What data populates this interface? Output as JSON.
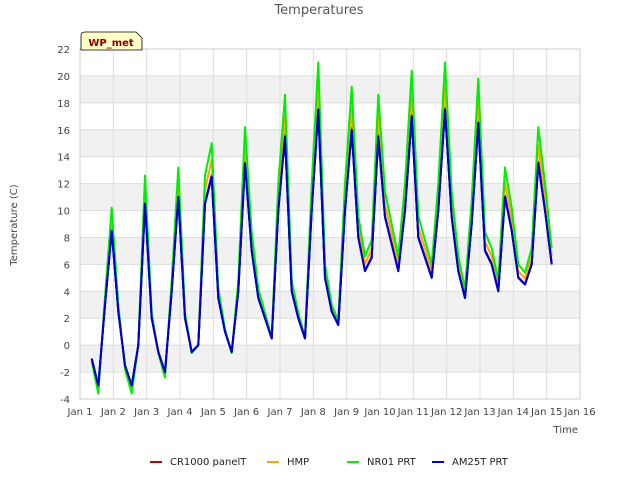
{
  "chart_data": {
    "type": "line",
    "title": "Temperatures",
    "xlabel": "Time",
    "ylabel": "Temperature (C)",
    "badge": "WP_met",
    "xlim": [
      1,
      16
    ],
    "ylim": [
      -4,
      22
    ],
    "yticks": [
      -4,
      -2,
      0,
      2,
      4,
      6,
      8,
      10,
      12,
      14,
      16,
      18,
      20,
      22
    ],
    "xticks": [
      {
        "v": 1,
        "label": "Jan 1"
      },
      {
        "v": 2,
        "label": "Jan 2"
      },
      {
        "v": 3,
        "label": "Jan 3"
      },
      {
        "v": 4,
        "label": "Jan 4"
      },
      {
        "v": 5,
        "label": "Jan 5"
      },
      {
        "v": 6,
        "label": "Jan 6"
      },
      {
        "v": 7,
        "label": "Jan 7"
      },
      {
        "v": 8,
        "label": "Jan 8"
      },
      {
        "v": 9,
        "label": "Jan 9"
      },
      {
        "v": 10,
        "label": "Jan 10"
      },
      {
        "v": 11,
        "label": "Jan 11"
      },
      {
        "v": 12,
        "label": "Jan 12"
      },
      {
        "v": 13,
        "label": "Jan 13"
      },
      {
        "v": 14,
        "label": "Jan 14"
      },
      {
        "v": 15,
        "label": "Jan 15"
      },
      {
        "v": 16,
        "label": "Jan 16"
      }
    ],
    "base": {
      "x": [
        1.35,
        1.55,
        1.75,
        1.95,
        2.15,
        2.35,
        2.55,
        2.75,
        2.95,
        3.15,
        3.35,
        3.55,
        3.75,
        3.95,
        4.15,
        4.35,
        4.55,
        4.75,
        4.95,
        5.15,
        5.35,
        5.55,
        5.75,
        5.95,
        6.15,
        6.35,
        6.55,
        6.75,
        6.95,
        7.15,
        7.35,
        7.55,
        7.75,
        7.95,
        8.15,
        8.35,
        8.55,
        8.75,
        8.95,
        9.15,
        9.35,
        9.55,
        9.75,
        9.95,
        10.15,
        10.35,
        10.55,
        10.75,
        10.95,
        11.15,
        11.35,
        11.55,
        11.75,
        11.95,
        12.15,
        12.35,
        12.55,
        12.75,
        12.95,
        13.15,
        13.35,
        13.55,
        13.75,
        13.95,
        14.15,
        14.35,
        14.55,
        14.75,
        14.95,
        15.15
      ],
      "y": [
        -1.0,
        -3.0,
        3.0,
        8.5,
        2.5,
        -1.5,
        -3.0,
        0.0,
        10.5,
        2.0,
        -0.5,
        -2.0,
        4.0,
        11.0,
        2.0,
        -0.5,
        0.0,
        10.5,
        12.5,
        3.5,
        1.0,
        -0.5,
        4.0,
        13.5,
        7.0,
        3.5,
        2.0,
        0.5,
        10.0,
        15.5,
        4.0,
        2.0,
        0.5,
        10.0,
        17.5,
        5.0,
        2.5,
        1.5,
        10.0,
        16.0,
        8.0,
        5.5,
        6.5,
        15.5,
        9.5,
        7.5,
        5.5,
        10.0,
        17.0,
        8.0,
        6.5,
        5.0,
        10.0,
        17.5,
        9.5,
        5.5,
        3.5,
        9.0,
        16.5,
        7.0,
        6.0,
        4.0,
        11.0,
        8.5,
        5.0,
        4.5,
        6.0,
        13.5,
        10.0,
        6.0
      ]
    },
    "series": [
      {
        "name": "CR1000 panelT",
        "color": "#cc0000",
        "amp": 1.01
      },
      {
        "name": "HMP",
        "color": "#ffa500",
        "amp": 1.1
      },
      {
        "name": "NR01 PRT",
        "color": "#00ee00",
        "amp": 1.2
      },
      {
        "name": "AM25T PRT",
        "color": "#0000cc",
        "amp": 1.0
      }
    ]
  }
}
